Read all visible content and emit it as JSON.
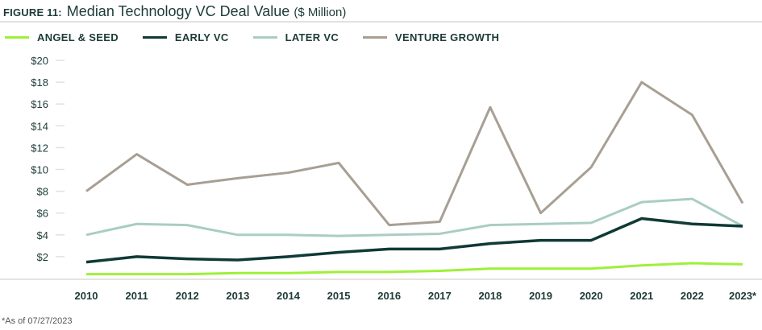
{
  "header": {
    "figure_label": "FIGURE 11:",
    "title": "Median Technology VC Deal Value",
    "unit": "($ Million)"
  },
  "footnote": "*As of 07/27/2023",
  "chart_data": {
    "type": "line",
    "title": "Median Technology VC Deal Value ($ Million)",
    "categories": [
      "2010",
      "2011",
      "2012",
      "2013",
      "2014",
      "2015",
      "2016",
      "2017",
      "2018",
      "2019",
      "2020",
      "2021",
      "2022",
      "2023*"
    ],
    "ylim": [
      0,
      20
    ],
    "yticks": [
      2,
      4,
      6,
      8,
      10,
      12,
      14,
      16,
      18,
      20
    ],
    "ytick_labels": [
      "$2",
      "$4",
      "$6",
      "$8",
      "$10",
      "$12",
      "$14",
      "$16",
      "$18",
      "$20"
    ],
    "grid": false,
    "legend": "top",
    "series": [
      {
        "name": "ANGEL & SEED",
        "color": "#9ef03a",
        "values": [
          0.4,
          0.4,
          0.4,
          0.5,
          0.5,
          0.6,
          0.6,
          0.7,
          0.9,
          0.9,
          0.9,
          1.2,
          1.4,
          1.3
        ]
      },
      {
        "name": "EARLY VC",
        "color": "#0f3a36",
        "values": [
          1.5,
          2.0,
          1.8,
          1.7,
          2.0,
          2.4,
          2.7,
          2.7,
          3.2,
          3.5,
          3.5,
          5.5,
          5.0,
          4.8
        ]
      },
      {
        "name": "LATER VC",
        "color": "#a9cdc4",
        "values": [
          4.0,
          5.0,
          4.9,
          4.0,
          4.0,
          3.9,
          4.0,
          4.1,
          4.9,
          5.0,
          5.1,
          7.0,
          7.3,
          4.8
        ]
      },
      {
        "name": "VENTURE GROWTH",
        "color": "#a89f94",
        "values": [
          8.0,
          11.4,
          8.6,
          9.2,
          9.7,
          10.6,
          4.9,
          5.2,
          15.7,
          6.0,
          10.2,
          18.0,
          15.0,
          6.9
        ]
      }
    ]
  }
}
